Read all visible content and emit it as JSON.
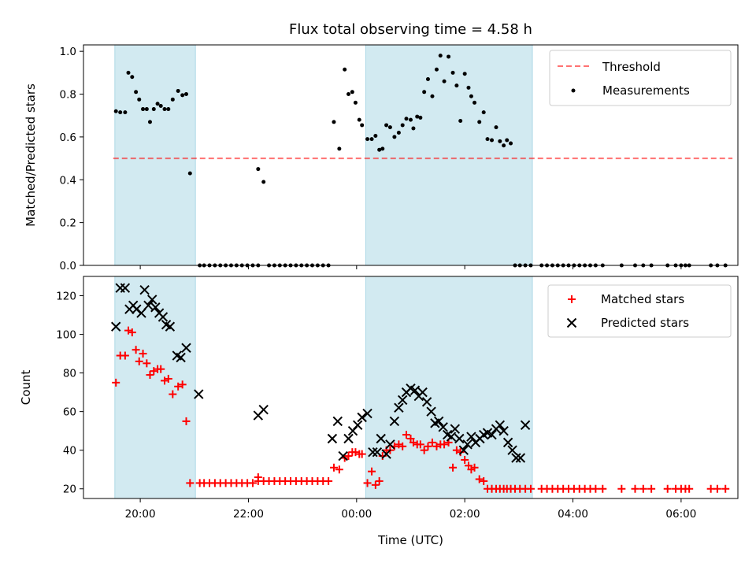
{
  "title": "Flux total observing time = 4.58 h",
  "colors": {
    "shade": "#add8e6",
    "threshold": "#ff0000",
    "measure": "#000000",
    "matched": "#ff0000",
    "predicted": "#000000"
  },
  "chart_data": [
    {
      "type": "scatter",
      "panel": "top",
      "ylabel": "Matched/Predicted stars",
      "xlabel": "",
      "xlim_hours": [
        18.95,
        31.05
      ],
      "ylim": [
        0,
        1.03
      ],
      "yticks": [
        0.0,
        0.2,
        0.4,
        0.6,
        0.8,
        1.0
      ],
      "ytick_labels": [
        "0.0",
        "0.2",
        "0.4",
        "0.6",
        "0.8",
        "1.0"
      ],
      "xticks_hours": [
        20,
        22,
        24,
        26,
        28,
        30
      ],
      "shaded_intervals_hours": [
        [
          19.53,
          21.02
        ],
        [
          24.17,
          27.25
        ]
      ],
      "legend_position": "upper right",
      "legend": [
        "Threshold",
        "Measurements"
      ],
      "threshold": {
        "name": "Threshold",
        "value": 0.5,
        "x_range_hours": [
          19.5,
          30.95
        ]
      },
      "series": [
        {
          "name": "Measurements",
          "x_hours": [
            19.55,
            19.63,
            19.72,
            19.78,
            19.85,
            19.92,
            19.98,
            20.05,
            20.12,
            20.18,
            20.25,
            20.32,
            20.38,
            20.45,
            20.52,
            20.6,
            20.7,
            20.78,
            20.85,
            20.92,
            21.1,
            21.18,
            21.28,
            21.38,
            21.48,
            21.58,
            21.68,
            21.78,
            21.88,
            21.98,
            22.08,
            22.18,
            22.18,
            22.28,
            22.38,
            22.48,
            22.58,
            22.68,
            22.78,
            22.88,
            22.98,
            23.08,
            23.18,
            23.28,
            23.38,
            23.48,
            23.58,
            23.68,
            23.78,
            23.85,
            23.92,
            23.98,
            24.05,
            24.1,
            24.2,
            24.28,
            24.35,
            24.42,
            24.48,
            24.55,
            24.62,
            24.7,
            24.78,
            24.85,
            24.92,
            25.0,
            25.05,
            25.12,
            25.18,
            25.25,
            25.32,
            25.4,
            25.48,
            25.55,
            25.62,
            25.7,
            25.78,
            25.85,
            25.92,
            26.0,
            26.07,
            26.12,
            26.18,
            26.27,
            26.35,
            26.42,
            26.5,
            26.58,
            26.65,
            26.72,
            26.78,
            26.85,
            26.93,
            27.02,
            27.12,
            27.22,
            27.42,
            27.52,
            27.62,
            27.72,
            27.82,
            27.92,
            28.02,
            28.12,
            28.22,
            28.32,
            28.42,
            28.55,
            28.9,
            29.15,
            29.3,
            29.45,
            29.75,
            29.9,
            30.0,
            30.08,
            30.15,
            30.55,
            30.67,
            30.82
          ],
          "y": [
            0.72,
            0.715,
            0.715,
            0.9,
            0.88,
            0.81,
            0.775,
            0.73,
            0.73,
            0.67,
            0.73,
            0.755,
            0.745,
            0.73,
            0.73,
            0.775,
            0.815,
            0.795,
            0.8,
            0.43,
            0.0,
            0.0,
            0.0,
            0.0,
            0.0,
            0.0,
            0.0,
            0.0,
            0.0,
            0.0,
            0.0,
            0.0,
            0.45,
            0.39,
            0.0,
            0.0,
            0.0,
            0.0,
            0.0,
            0.0,
            0.0,
            0.0,
            0.0,
            0.0,
            0.0,
            0.0,
            0.67,
            0.545,
            0.915,
            0.8,
            0.81,
            0.76,
            0.68,
            0.655,
            0.59,
            0.59,
            0.605,
            0.54,
            0.545,
            0.655,
            0.645,
            0.6,
            0.62,
            0.655,
            0.685,
            0.68,
            0.64,
            0.695,
            0.69,
            0.81,
            0.87,
            0.79,
            0.915,
            0.98,
            0.86,
            0.975,
            0.9,
            0.84,
            0.675,
            0.895,
            0.83,
            0.79,
            0.76,
            0.67,
            0.715,
            0.59,
            0.585,
            0.645,
            0.58,
            0.56,
            0.585,
            0.57,
            0.0,
            0.0,
            0.0,
            0.0,
            0.0,
            0.0,
            0.0,
            0.0,
            0.0,
            0.0,
            0.0,
            0.0,
            0.0,
            0.0,
            0.0,
            0.0,
            0.0,
            0.0,
            0.0,
            0.0,
            0.0,
            0.0,
            0.0,
            0.0,
            0.0,
            0.0,
            0.0,
            0.0
          ]
        }
      ]
    },
    {
      "type": "scatter",
      "panel": "bottom",
      "ylabel": "Count",
      "xlabel": "Time (UTC)",
      "xlim_hours": [
        18.95,
        31.05
      ],
      "ylim": [
        15,
        130
      ],
      "yticks": [
        20,
        40,
        60,
        80,
        100,
        120
      ],
      "ytick_labels": [
        "20",
        "40",
        "60",
        "80",
        "100",
        "120"
      ],
      "xticks_hours": [
        20,
        22,
        24,
        26,
        28,
        30
      ],
      "xtick_labels": [
        "20:00",
        "22:00",
        "00:00",
        "02:00",
        "04:00",
        "06:00"
      ],
      "shaded_intervals_hours": [
        [
          19.53,
          21.02
        ],
        [
          24.17,
          27.25
        ]
      ],
      "legend_position": "upper right",
      "legend": [
        "Matched stars",
        "Predicted stars"
      ],
      "series": [
        {
          "name": "Matched stars",
          "marker": "plus",
          "x_hours": [
            19.55,
            19.63,
            19.72,
            19.78,
            19.85,
            19.92,
            19.98,
            20.05,
            20.12,
            20.18,
            20.25,
            20.32,
            20.38,
            20.45,
            20.52,
            20.6,
            20.7,
            20.78,
            20.85,
            20.92,
            21.1,
            21.18,
            21.28,
            21.38,
            21.48,
            21.58,
            21.68,
            21.78,
            21.88,
            21.98,
            22.08,
            22.18,
            22.18,
            22.28,
            22.38,
            22.48,
            22.58,
            22.68,
            22.78,
            22.88,
            22.98,
            23.08,
            23.18,
            23.28,
            23.38,
            23.48,
            23.58,
            23.68,
            23.78,
            23.85,
            23.92,
            23.98,
            24.05,
            24.1,
            24.2,
            24.28,
            24.35,
            24.42,
            24.48,
            24.55,
            24.62,
            24.7,
            24.78,
            24.85,
            24.92,
            25.0,
            25.05,
            25.12,
            25.18,
            25.25,
            25.32,
            25.4,
            25.48,
            25.55,
            25.62,
            25.7,
            25.78,
            25.85,
            25.92,
            26.0,
            26.07,
            26.12,
            26.18,
            26.27,
            26.35,
            26.42,
            26.5,
            26.58,
            26.65,
            26.72,
            26.78,
            26.85,
            26.93,
            27.02,
            27.12,
            27.22,
            27.42,
            27.52,
            27.62,
            27.72,
            27.82,
            27.92,
            28.02,
            28.12,
            28.22,
            28.32,
            28.42,
            28.55,
            28.9,
            29.15,
            29.3,
            29.45,
            29.75,
            29.9,
            30.0,
            30.08,
            30.15,
            30.55,
            30.67,
            30.82
          ],
          "y": [
            75,
            89,
            89,
            102,
            101,
            92,
            86,
            90,
            85,
            79,
            81,
            82,
            82,
            76,
            77,
            69,
            73,
            74,
            55,
            23,
            23,
            23,
            23,
            23,
            23,
            23,
            23,
            23,
            23,
            23,
            23,
            26,
            24,
            24,
            24,
            24,
            24,
            24,
            24,
            24,
            24,
            24,
            24,
            24,
            24,
            24,
            31,
            30,
            36,
            37,
            39,
            39,
            38,
            38,
            23,
            29,
            22,
            24,
            37,
            40,
            40,
            42,
            43,
            42,
            48,
            46,
            44,
            43,
            43,
            40,
            42,
            44,
            42,
            43,
            43,
            44,
            31,
            40,
            39,
            35,
            32,
            30,
            31,
            25,
            24,
            20,
            20,
            20,
            20,
            20,
            20,
            20,
            20,
            20,
            20,
            20,
            20,
            20,
            20,
            20,
            20,
            20,
            20,
            20,
            20,
            20,
            20,
            20,
            20,
            20,
            20,
            20,
            20,
            20,
            20,
            20,
            20,
            20,
            20,
            20
          ]
        },
        {
          "name": "Predicted stars",
          "marker": "x",
          "x_hours": [
            19.55,
            19.63,
            19.72,
            19.8,
            19.87,
            19.93,
            20.02,
            20.08,
            20.15,
            20.22,
            20.28,
            20.35,
            20.42,
            20.48,
            20.55,
            20.68,
            20.75,
            20.85,
            21.08,
            22.18,
            22.28,
            23.55,
            23.65,
            23.75,
            23.85,
            23.93,
            24.02,
            24.1,
            24.2,
            24.3,
            24.38,
            24.45,
            24.55,
            24.62,
            24.7,
            24.78,
            24.85,
            24.92,
            25.0,
            25.08,
            25.15,
            25.22,
            25.3,
            25.38,
            25.45,
            25.52,
            25.6,
            25.68,
            25.75,
            25.82,
            25.9,
            25.98,
            26.05,
            26.12,
            26.2,
            26.28,
            26.35,
            26.42,
            26.5,
            26.58,
            26.65,
            26.72,
            26.8,
            26.88,
            26.95,
            27.03,
            27.12
          ],
          "y": [
            104,
            124,
            124,
            113,
            115,
            113,
            111,
            123,
            115,
            118,
            114,
            111,
            109,
            105,
            104,
            89,
            88,
            93,
            69,
            58,
            61,
            46,
            55,
            37,
            46,
            50,
            53,
            57,
            59,
            39,
            39,
            46,
            38,
            43,
            55,
            62,
            66,
            70,
            72,
            71,
            68,
            70,
            65,
            60,
            54,
            55,
            52,
            48,
            47,
            51,
            46,
            40,
            43,
            47,
            44,
            46,
            48,
            49,
            48,
            51,
            53,
            50,
            44,
            40,
            36,
            36,
            53
          ]
        }
      ]
    }
  ]
}
